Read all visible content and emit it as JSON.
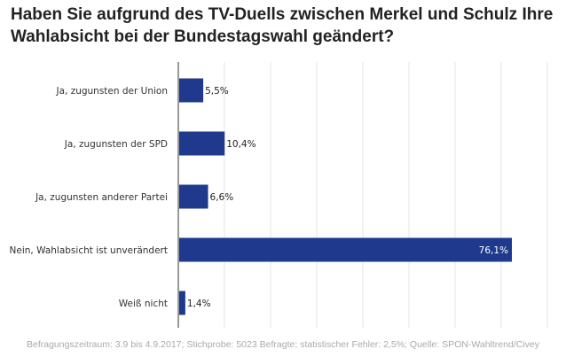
{
  "title": "Haben Sie aufgrund des TV-Duells zwischen Merkel und Schulz Ihre Wahlabsicht bei der Bundestagswahl geändert?",
  "source": "Befragungszeitraum: 3.9 bis 4.9.2017; Stichprobe: 5023 Befragte; statistischer Fehler: 2,5%; Quelle: SPON-Wahltrend/Civey",
  "colors": {
    "bar": "#1f3a8c",
    "grid": "#e6e6e6",
    "axis": "#333333"
  },
  "chart_data": {
    "type": "bar",
    "orientation": "horizontal",
    "categories": [
      "Ja, zugunsten der Union",
      "Ja, zugunsten der SPD",
      "Ja, zugunsten anderer Partei",
      "Nein, Wahlabsicht ist unverändert",
      "Weiß nicht"
    ],
    "values": [
      5.5,
      10.4,
      6.6,
      76.1,
      1.4
    ],
    "value_labels": [
      "5,5%",
      "10,4%",
      "6,6%",
      "76,1%",
      "1,4%"
    ],
    "xlim": [
      0,
      85
    ],
    "grid": true
  }
}
